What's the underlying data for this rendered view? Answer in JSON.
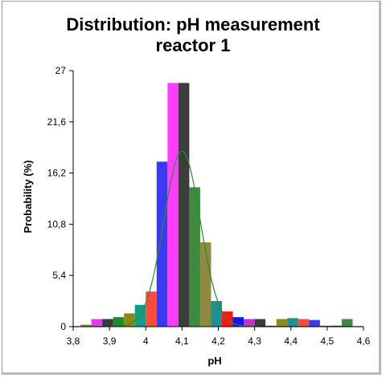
{
  "chart_data": {
    "type": "bar",
    "title_line1": "Distribution: pH measurement",
    "title_line2": "reactor 1",
    "xlabel": "pH",
    "ylabel": "Probability (%)",
    "xlim": [
      3.8,
      4.6
    ],
    "ylim": [
      0,
      27
    ],
    "x_ticks": [
      3.8,
      3.9,
      4.0,
      4.1,
      4.2,
      4.3,
      4.4,
      4.5,
      4.6
    ],
    "x_tick_labels": [
      "3,8",
      "3,9",
      "4",
      "4,1",
      "4,2",
      "4,3",
      "4,4",
      "4,5",
      "4,6"
    ],
    "y_ticks": [
      0,
      5.4,
      10.8,
      16.2,
      21.6,
      27
    ],
    "y_tick_labels": [
      "0",
      "5,4",
      "10,8",
      "16,2",
      "21,6",
      "27"
    ],
    "bin_width": 0.03,
    "bars": [
      {
        "x": 3.82,
        "value": 0.2,
        "color": "#7b8f2b"
      },
      {
        "x": 3.85,
        "value": 0.8,
        "color": "#e23ee8"
      },
      {
        "x": 3.88,
        "value": 0.8,
        "color": "#3a3a3a"
      },
      {
        "x": 3.91,
        "value": 1.0,
        "color": "#1e8a2c"
      },
      {
        "x": 3.94,
        "value": 1.4,
        "color": "#8a8a14"
      },
      {
        "x": 3.97,
        "value": 2.3,
        "color": "#139c8c"
      },
      {
        "x": 4.0,
        "value": 3.7,
        "color": "#ff4b3a"
      },
      {
        "x": 4.03,
        "value": 17.4,
        "color": "#3a3af0"
      },
      {
        "x": 4.06,
        "value": 25.7,
        "color": "#ff3cff"
      },
      {
        "x": 4.09,
        "value": 25.7,
        "color": "#3c3c3c"
      },
      {
        "x": 4.12,
        "value": 14.7,
        "color": "#3f8a3f"
      },
      {
        "x": 4.15,
        "value": 8.9,
        "color": "#8f8a3f"
      },
      {
        "x": 4.18,
        "value": 2.7,
        "color": "#1f8f8f"
      },
      {
        "x": 4.21,
        "value": 1.6,
        "color": "#ff1414"
      },
      {
        "x": 4.24,
        "value": 1.0,
        "color": "#1414ff"
      },
      {
        "x": 4.27,
        "value": 0.8,
        "color": "#c832c8"
      },
      {
        "x": 4.3,
        "value": 0.8,
        "color": "#3c3c3c"
      },
      {
        "x": 4.33,
        "value": 0.1,
        "color": "#2f7a2f"
      },
      {
        "x": 4.36,
        "value": 0.8,
        "color": "#8f8a1f"
      },
      {
        "x": 4.39,
        "value": 0.9,
        "color": "#1f8f8f"
      },
      {
        "x": 4.42,
        "value": 0.8,
        "color": "#ff4b3a"
      },
      {
        "x": 4.45,
        "value": 0.7,
        "color": "#3a3af0"
      },
      {
        "x": 4.48,
        "value": 0.1,
        "color": "#c832c8"
      },
      {
        "x": 4.51,
        "value": 0.1,
        "color": "#3c3c3c"
      },
      {
        "x": 4.54,
        "value": 0.8,
        "color": "#3f8a3f"
      }
    ],
    "normal_curve": {
      "mean": 4.1,
      "sd": 0.05,
      "peak": 18.5,
      "color": "#2e8b2e"
    }
  }
}
